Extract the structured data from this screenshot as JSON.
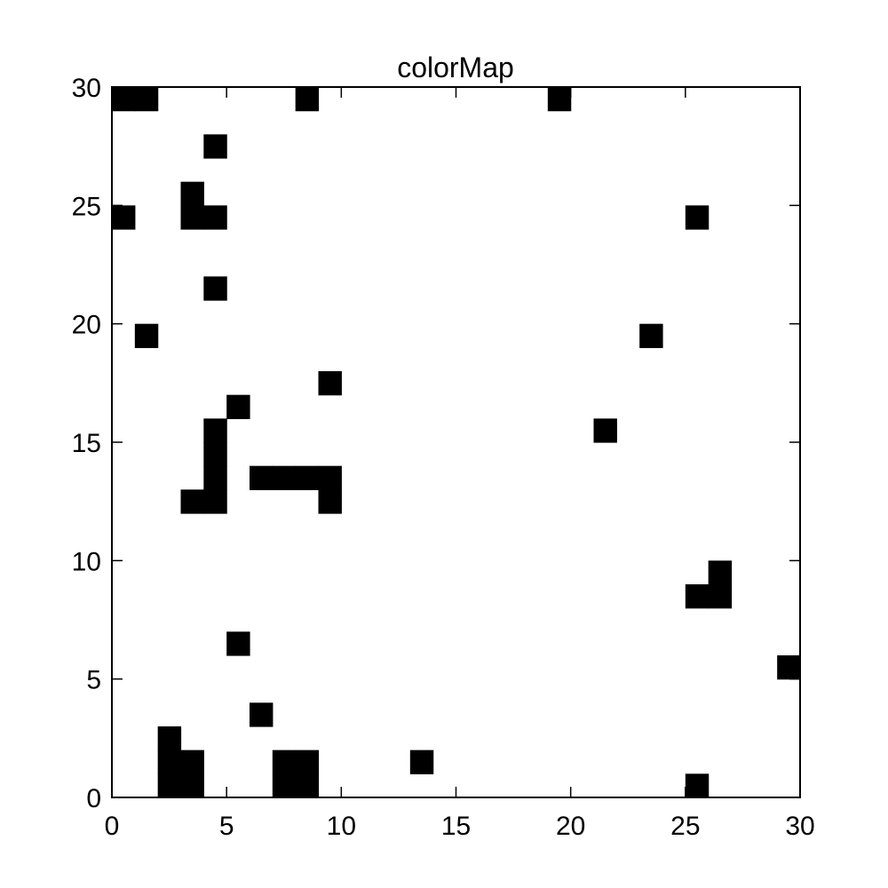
{
  "chart_data": {
    "type": "heatmap",
    "title": "colorMap",
    "xlabel": "",
    "ylabel": "",
    "xlim": [
      0,
      30
    ],
    "ylim": [
      0,
      30
    ],
    "x_ticks": [
      0,
      5,
      10,
      15,
      20,
      25,
      30
    ],
    "y_ticks": [
      0,
      5,
      10,
      15,
      20,
      25,
      30
    ],
    "x_tick_labels": [
      "0",
      "5",
      "10",
      "15",
      "20",
      "25",
      "30"
    ],
    "y_tick_labels": [
      "0",
      "5",
      "10",
      "15",
      "20",
      "25",
      "30"
    ],
    "grid": false,
    "legend": "none",
    "colors": {
      "filled": "#000000",
      "empty": "#ffffff"
    },
    "cell_value_meaning": "cells listed are filled (value 1); all other cells empty (value 0)",
    "filled_cells": [
      [
        0,
        29
      ],
      [
        1,
        29
      ],
      [
        8,
        29
      ],
      [
        19,
        29
      ],
      [
        4,
        27
      ],
      [
        3,
        25
      ],
      [
        0,
        24
      ],
      [
        3,
        24
      ],
      [
        4,
        24
      ],
      [
        25,
        24
      ],
      [
        4,
        21
      ],
      [
        1,
        19
      ],
      [
        23,
        19
      ],
      [
        9,
        17
      ],
      [
        5,
        16
      ],
      [
        4,
        15
      ],
      [
        21,
        15
      ],
      [
        4,
        14
      ],
      [
        4,
        13
      ],
      [
        6,
        13
      ],
      [
        7,
        13
      ],
      [
        8,
        13
      ],
      [
        9,
        13
      ],
      [
        3,
        12
      ],
      [
        4,
        12
      ],
      [
        9,
        12
      ],
      [
        26,
        9
      ],
      [
        25,
        8
      ],
      [
        26,
        8
      ],
      [
        5,
        6
      ],
      [
        29,
        5
      ],
      [
        6,
        3
      ],
      [
        2,
        2
      ],
      [
        2,
        1
      ],
      [
        3,
        1
      ],
      [
        7,
        1
      ],
      [
        8,
        1
      ],
      [
        13,
        1
      ],
      [
        2,
        0
      ],
      [
        3,
        0
      ],
      [
        7,
        0
      ],
      [
        8,
        0
      ],
      [
        25,
        0
      ]
    ]
  }
}
